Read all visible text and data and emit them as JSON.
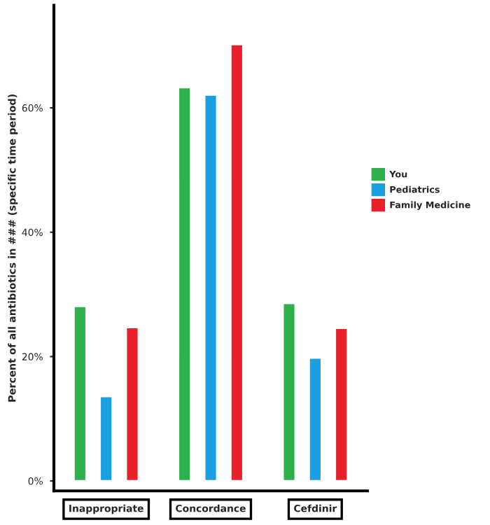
{
  "chart_data": {
    "type": "bar",
    "ylabel": "Percent of all antibiotics in ### (specific time period)",
    "categories": [
      "Inappropriate",
      "Concordance",
      "Cefdinir"
    ],
    "series": [
      {
        "name": "You",
        "color": "#2db14c",
        "values": [
          28.1,
          63.3,
          28.6
        ]
      },
      {
        "name": "Pediatrics",
        "color": "#1a9fe0",
        "values": [
          13.6,
          62.1,
          19.8
        ]
      },
      {
        "name": "Family Medicine",
        "color": "#e8202a",
        "values": [
          24.7,
          70.2,
          24.6
        ]
      }
    ],
    "ylim": [
      -1.6,
      76.5
    ],
    "yticks": [
      {
        "value": 0,
        "label": "0%"
      },
      {
        "value": 20,
        "label": "20%"
      },
      {
        "value": 40,
        "label": "40%"
      },
      {
        "value": 60,
        "label": "60%"
      }
    ],
    "grid": false,
    "legend": "right"
  }
}
